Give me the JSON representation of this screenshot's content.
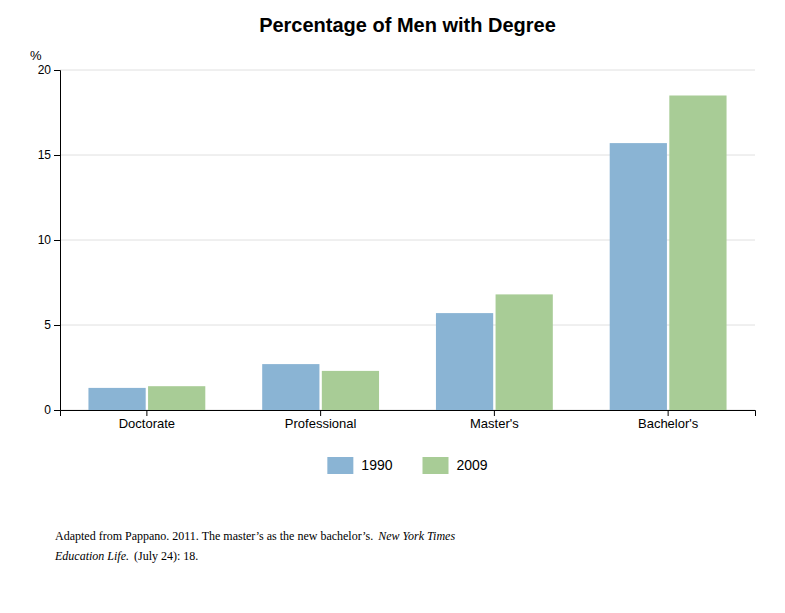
{
  "chart_data": {
    "type": "bar",
    "title": "Percentage of Men with Degree",
    "categories": [
      "Doctorate",
      "Professional",
      "Master's",
      "Bachelor's"
    ],
    "series": [
      {
        "name": "1990",
        "color": "#8ab4d4",
        "values": [
          1.3,
          2.7,
          5.7,
          15.7
        ]
      },
      {
        "name": "2009",
        "color": "#a8cc96",
        "values": [
          1.4,
          2.3,
          6.8,
          18.5
        ]
      }
    ],
    "ylabel": "%",
    "ylim": [
      0,
      20
    ],
    "yticks": [
      0,
      5,
      10,
      15,
      20
    ],
    "grid": true,
    "legend": "bottom",
    "annotations": [
      "Adapted from Pappano. 2011.  The master’s as the new bachelor’s.",
      "New York Times",
      "Education Life.",
      "(July 24): 18."
    ]
  }
}
